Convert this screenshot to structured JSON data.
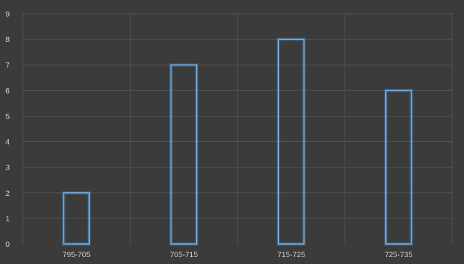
{
  "chart_data": {
    "type": "bar",
    "categories": [
      "795-705",
      "705-715",
      "715-725",
      "725-735"
    ],
    "values": [
      2,
      7,
      8,
      6
    ],
    "title": "",
    "xlabel": "",
    "ylabel": "",
    "ylim": [
      0,
      9
    ],
    "y_ticks": [
      "0",
      "1",
      "2",
      "3",
      "4",
      "5",
      "6",
      "7",
      "8",
      "9"
    ],
    "grid": true,
    "legend": "none",
    "colors": {
      "background": "#3b3b3b",
      "grid": "#555555",
      "bar_outline": "#6fb5f0",
      "bar_glow": "#5aa2e6",
      "text": "#d4d4d4"
    }
  }
}
